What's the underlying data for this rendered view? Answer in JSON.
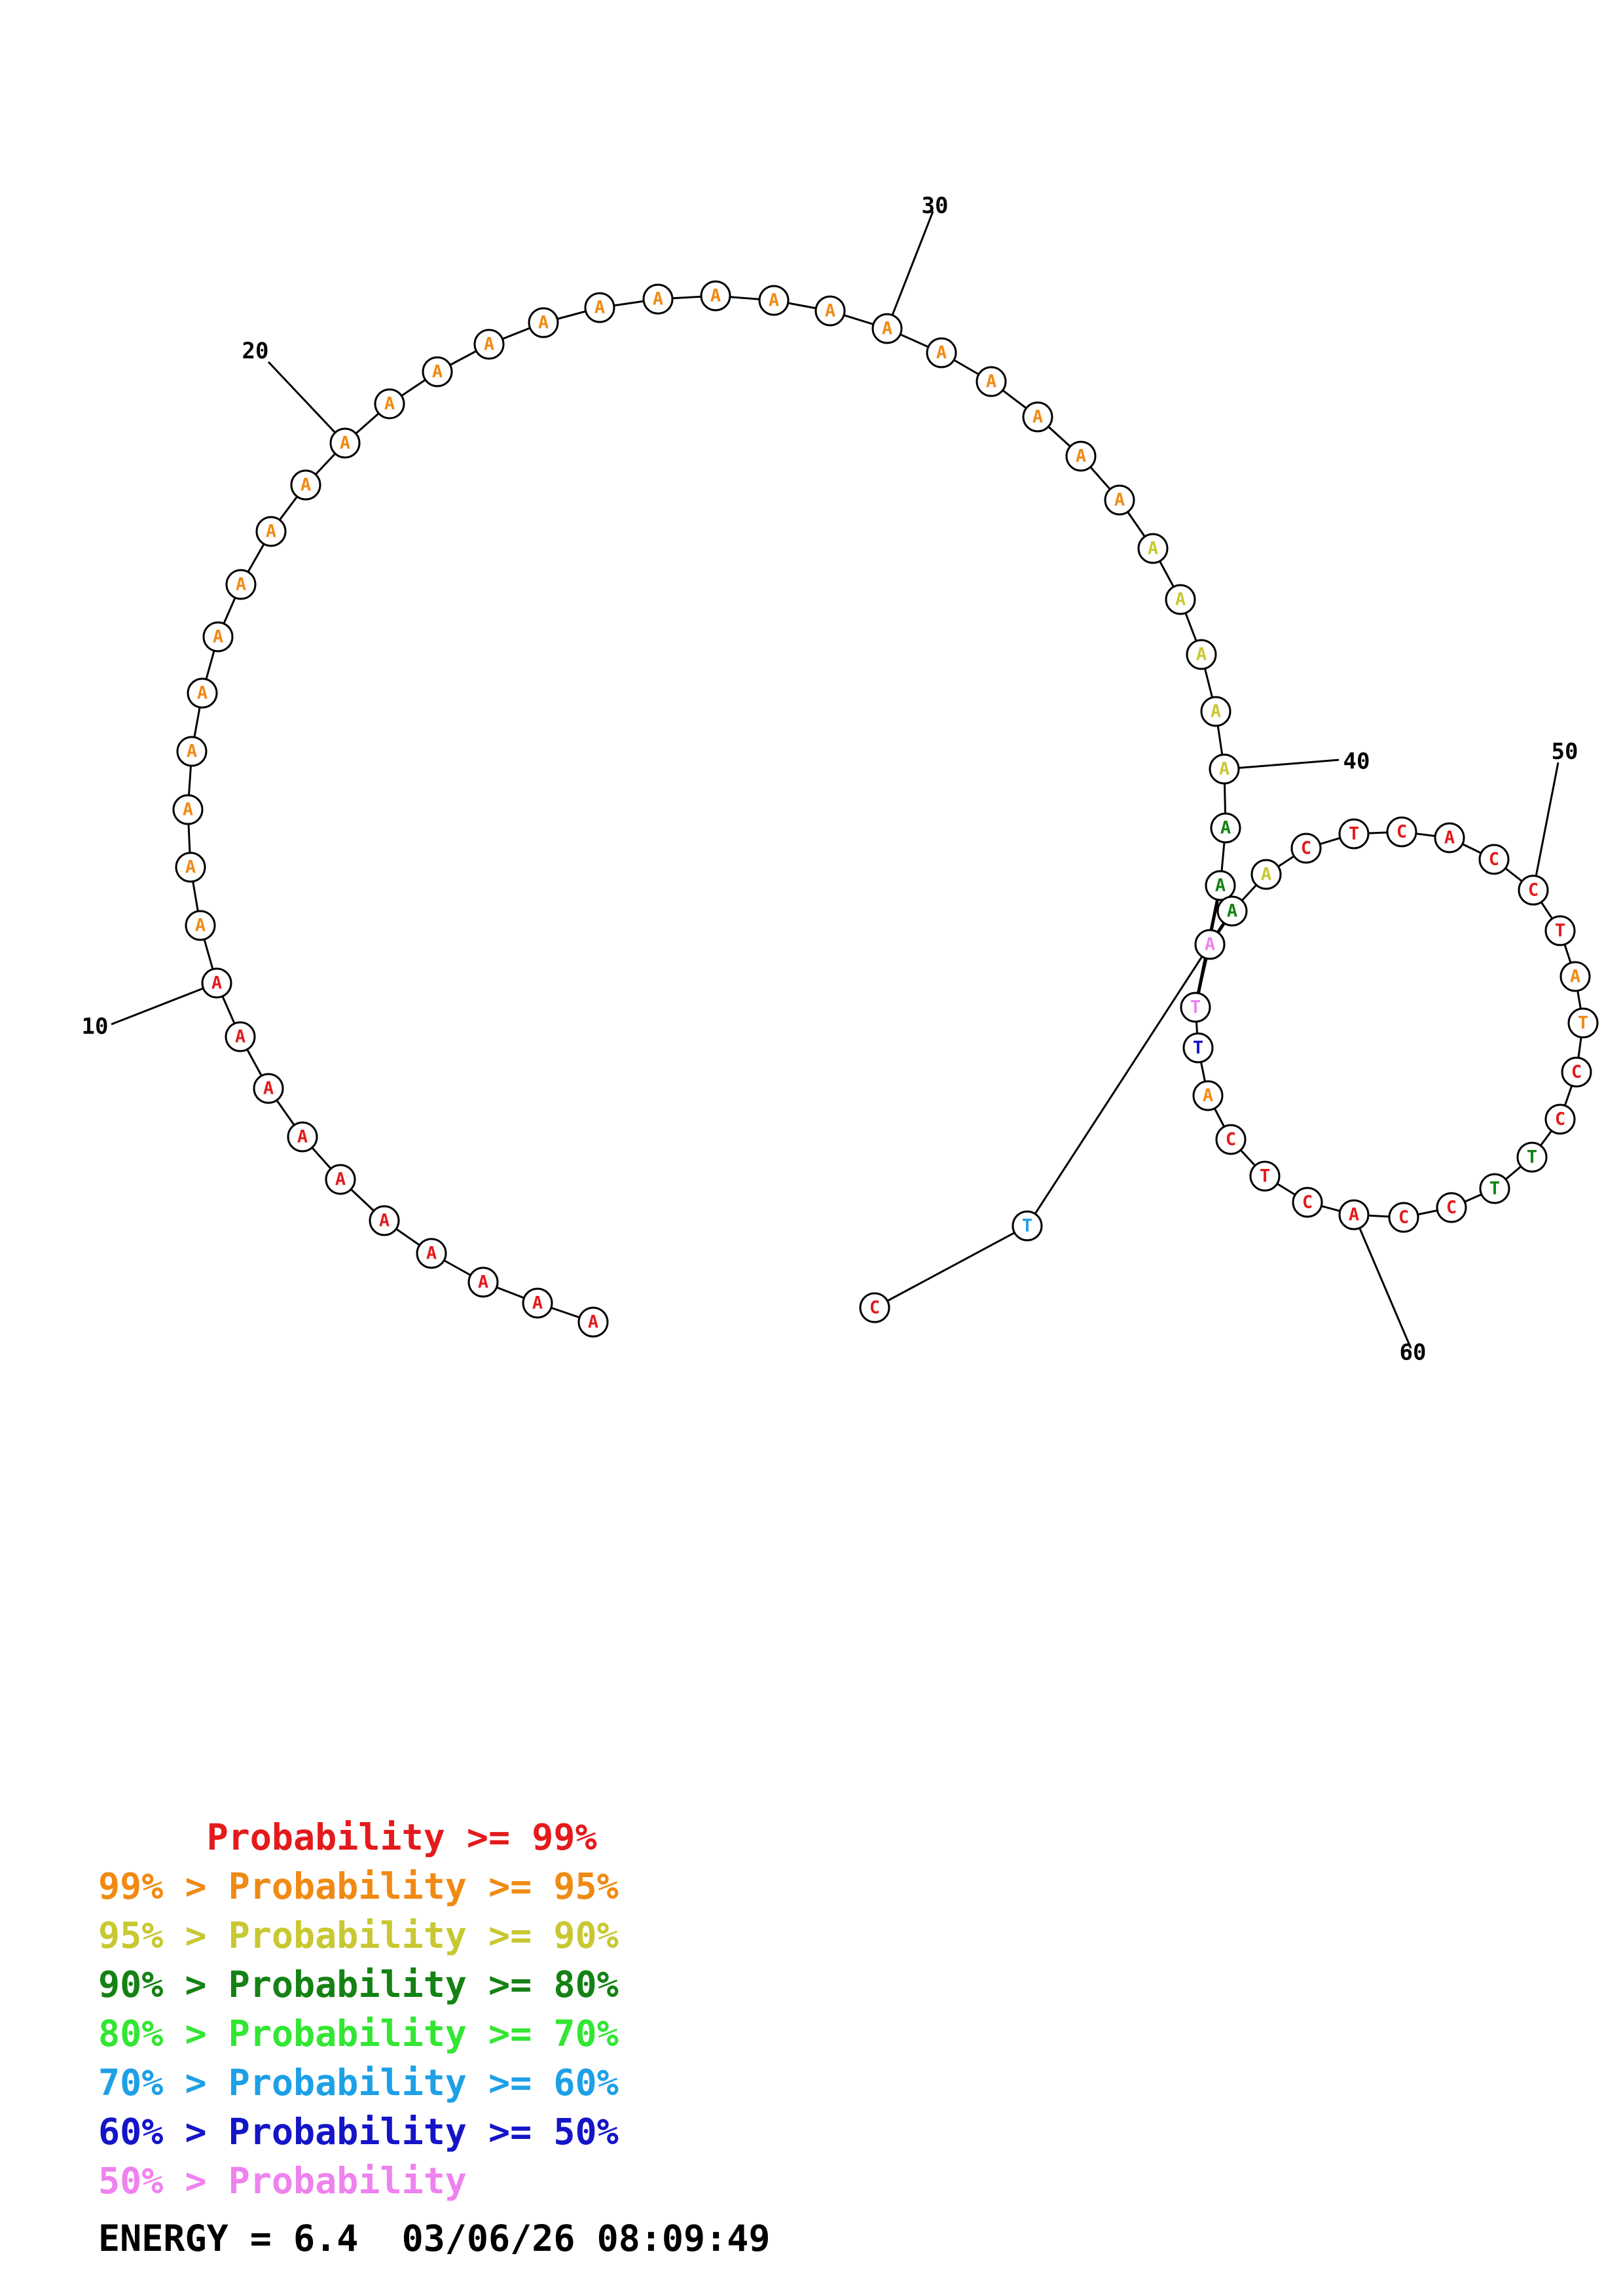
{
  "structure": {
    "nucleotides": [
      {
        "n": 1,
        "base": "A",
        "color": "#e41a1c"
      },
      {
        "n": 2,
        "base": "A",
        "color": "#e41a1c"
      },
      {
        "n": 3,
        "base": "A",
        "color": "#e41a1c"
      },
      {
        "n": 4,
        "base": "A",
        "color": "#e41a1c"
      },
      {
        "n": 5,
        "base": "A",
        "color": "#e41a1c"
      },
      {
        "n": 6,
        "base": "A",
        "color": "#e41a1c"
      },
      {
        "n": 7,
        "base": "A",
        "color": "#e41a1c"
      },
      {
        "n": 8,
        "base": "A",
        "color": "#e41a1c"
      },
      {
        "n": 9,
        "base": "A",
        "color": "#e41a1c"
      },
      {
        "n": 10,
        "base": "A",
        "color": "#e41a1c"
      },
      {
        "n": 11,
        "base": "A",
        "color": "#f08a14"
      },
      {
        "n": 12,
        "base": "A",
        "color": "#f08a14"
      },
      {
        "n": 13,
        "base": "A",
        "color": "#f08a14"
      },
      {
        "n": 14,
        "base": "A",
        "color": "#f08a14"
      },
      {
        "n": 15,
        "base": "A",
        "color": "#f08a14"
      },
      {
        "n": 16,
        "base": "A",
        "color": "#f08a14"
      },
      {
        "n": 17,
        "base": "A",
        "color": "#f08a14"
      },
      {
        "n": 18,
        "base": "A",
        "color": "#f08a14"
      },
      {
        "n": 19,
        "base": "A",
        "color": "#f08a14"
      },
      {
        "n": 20,
        "base": "A",
        "color": "#f08a14"
      },
      {
        "n": 21,
        "base": "A",
        "color": "#f08a14"
      },
      {
        "n": 22,
        "base": "A",
        "color": "#f08a14"
      },
      {
        "n": 23,
        "base": "A",
        "color": "#f08a14"
      },
      {
        "n": 24,
        "base": "A",
        "color": "#f08a14"
      },
      {
        "n": 25,
        "base": "A",
        "color": "#f08a14"
      },
      {
        "n": 26,
        "base": "A",
        "color": "#f08a14"
      },
      {
        "n": 27,
        "base": "A",
        "color": "#f08a14"
      },
      {
        "n": 28,
        "base": "A",
        "color": "#f08a14"
      },
      {
        "n": 29,
        "base": "A",
        "color": "#f08a14"
      },
      {
        "n": 30,
        "base": "A",
        "color": "#f08a14"
      },
      {
        "n": 31,
        "base": "A",
        "color": "#f08a14"
      },
      {
        "n": 32,
        "base": "A",
        "color": "#f08a14"
      },
      {
        "n": 33,
        "base": "A",
        "color": "#f08a14"
      },
      {
        "n": 34,
        "base": "A",
        "color": "#f08a14"
      },
      {
        "n": 35,
        "base": "A",
        "color": "#f08a14"
      },
      {
        "n": 36,
        "base": "A",
        "color": "#c8c832"
      },
      {
        "n": 37,
        "base": "A",
        "color": "#c8c832"
      },
      {
        "n": 38,
        "base": "A",
        "color": "#c8c832"
      },
      {
        "n": 39,
        "base": "A",
        "color": "#c8c832"
      },
      {
        "n": 40,
        "base": "A",
        "color": "#c8c832"
      },
      {
        "n": 41,
        "base": "A",
        "color": "#148214"
      },
      {
        "n": 42,
        "base": "A",
        "color": "#148214"
      },
      {
        "n": 43,
        "base": "A",
        "color": "#148214"
      },
      {
        "n": 44,
        "base": "A",
        "color": "#c8c832"
      },
      {
        "n": 45,
        "base": "C",
        "color": "#e41a1c"
      },
      {
        "n": 46,
        "base": "T",
        "color": "#e41a1c"
      },
      {
        "n": 47,
        "base": "C",
        "color": "#e41a1c"
      },
      {
        "n": 48,
        "base": "A",
        "color": "#e41a1c"
      },
      {
        "n": 49,
        "base": "C",
        "color": "#e41a1c"
      },
      {
        "n": 50,
        "base": "C",
        "color": "#e41a1c"
      },
      {
        "n": 51,
        "base": "T",
        "color": "#e41a1c"
      },
      {
        "n": 52,
        "base": "A",
        "color": "#f08a14"
      },
      {
        "n": 53,
        "base": "T",
        "color": "#f08a14"
      },
      {
        "n": 54,
        "base": "C",
        "color": "#e41a1c"
      },
      {
        "n": 55,
        "base": "C",
        "color": "#e41a1c"
      },
      {
        "n": 56,
        "base": "T",
        "color": "#148214"
      },
      {
        "n": 57,
        "base": "T",
        "color": "#148214"
      },
      {
        "n": 58,
        "base": "C",
        "color": "#e41a1c"
      },
      {
        "n": 59,
        "base": "C",
        "color": "#e41a1c"
      },
      {
        "n": 60,
        "base": "A",
        "color": "#e41a1c"
      },
      {
        "n": 61,
        "base": "C",
        "color": "#e41a1c"
      },
      {
        "n": 62,
        "base": "T",
        "color": "#e41a1c"
      },
      {
        "n": 63,
        "base": "C",
        "color": "#e41a1c"
      },
      {
        "n": 64,
        "base": "A",
        "color": "#f08a14"
      },
      {
        "n": 65,
        "base": "T",
        "color": "#1414c8"
      },
      {
        "n": 66,
        "base": "T",
        "color": "#ee82ee"
      },
      {
        "n": 67,
        "base": "A",
        "color": "#ee82ee"
      },
      {
        "n": 68,
        "base": "T",
        "color": "#1ea0e6"
      },
      {
        "n": 69,
        "base": "C",
        "color": "#e41a1c"
      }
    ],
    "pairs": [
      [
        42,
        66
      ],
      [
        43,
        67
      ]
    ],
    "ticks": [
      {
        "label": "10",
        "n": 10
      },
      {
        "label": "20",
        "n": 20
      },
      {
        "label": "30",
        "n": 30
      },
      {
        "label": "40",
        "n": 40
      },
      {
        "label": "50",
        "n": 50
      },
      {
        "label": "60",
        "n": 60
      }
    ]
  },
  "legend": {
    "rows": [
      {
        "text": "     Probability >= 99%",
        "color": "#e41a1c"
      },
      {
        "text": "99% > Probability >= 95%",
        "color": "#f08a14"
      },
      {
        "text": "95% > Probability >= 90%",
        "color": "#c8c832"
      },
      {
        "text": "90% > Probability >= 80%",
        "color": "#148214"
      },
      {
        "text": "80% > Probability >= 70%",
        "color": "#32e632"
      },
      {
        "text": "70% > Probability >= 60%",
        "color": "#1ea0e6"
      },
      {
        "text": "60% > Probability >= 50%",
        "color": "#1414c8"
      },
      {
        "text": "50% > Probability",
        "color": "#ee82ee"
      }
    ]
  },
  "footer": {
    "energy_line": "ENERGY = 6.4  03/06/26 08:09:49"
  }
}
